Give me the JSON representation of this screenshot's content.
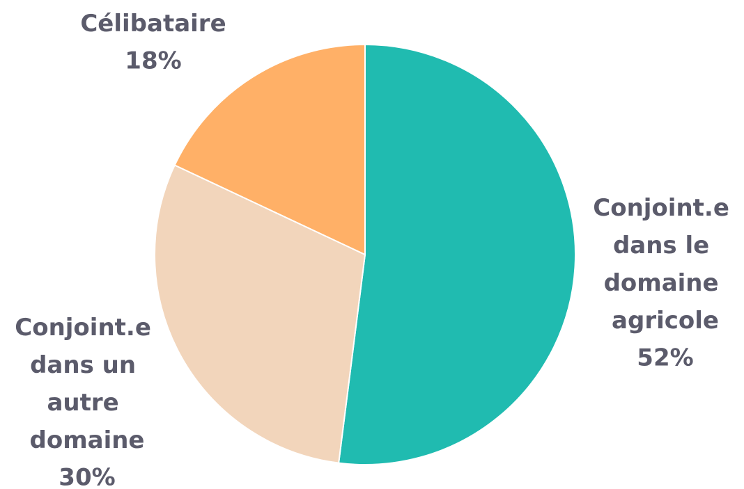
{
  "chart_data": {
    "type": "pie",
    "categories": [
      "Conjoint.e dans le domaine agricole",
      "Conjoint.e dans un autre domaine",
      "Célibataire"
    ],
    "values": [
      52,
      30,
      18
    ],
    "value_labels": [
      "52%",
      "30%",
      "18%"
    ],
    "colors": [
      "#20bbb0",
      "#f2d5bb",
      "#ffb067"
    ]
  }
}
